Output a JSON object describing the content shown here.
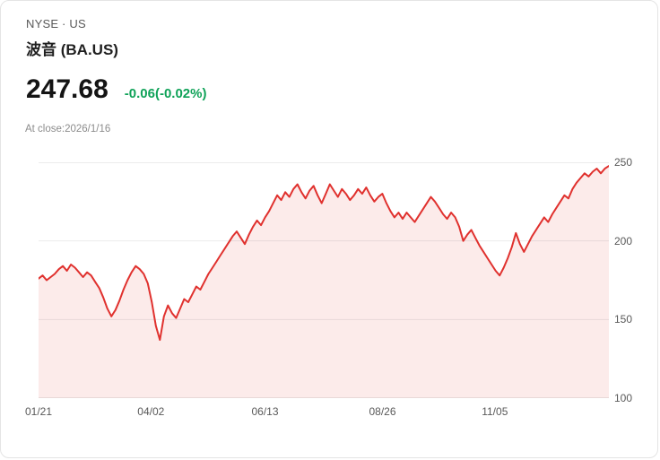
{
  "header": {
    "exchange": "NYSE · US",
    "name": "波音 (BA.US)",
    "price": "247.68",
    "change": "-0.06(-0.02%)",
    "as_of": "At close:2026/1/16"
  },
  "colors": {
    "line": "#e0312e",
    "area": "#fcebea",
    "grid": "rgba(0,0,0,0.08)",
    "change_down_green": "#0fa258",
    "axis_text": "#595959"
  },
  "chart_data": {
    "type": "area",
    "title": "波音 (BA.US) daily close price",
    "xlabel": "",
    "ylabel": "",
    "ylim": [
      100,
      250
    ],
    "grid": true,
    "legend": "none",
    "y_ticks": [
      {
        "label": "250",
        "value": 250
      },
      {
        "label": "200",
        "value": 200
      },
      {
        "label": "150",
        "value": 150
      },
      {
        "label": "100",
        "value": 100
      }
    ],
    "x_ticks": [
      {
        "label": "01/21",
        "pos": 0.0
      },
      {
        "label": "04/02",
        "pos": 0.197
      },
      {
        "label": "06/13",
        "pos": 0.397
      },
      {
        "label": "08/26",
        "pos": 0.603
      },
      {
        "label": "11/05",
        "pos": 0.8
      }
    ],
    "values": [
      176,
      178,
      175,
      177,
      179,
      182,
      184,
      181,
      185,
      183,
      180,
      177,
      180,
      178,
      174,
      170,
      164,
      157,
      152,
      156,
      162,
      169,
      175,
      180,
      184,
      182,
      179,
      173,
      161,
      146,
      137,
      152,
      159,
      154,
      151,
      157,
      163,
      161,
      166,
      171,
      169,
      174,
      179,
      183,
      187,
      191,
      195,
      199,
      203,
      206,
      202,
      198,
      204,
      209,
      213,
      210,
      215,
      219,
      224,
      229,
      226,
      231,
      228,
      233,
      236,
      231,
      227,
      232,
      235,
      229,
      224,
      230,
      236,
      232,
      228,
      233,
      230,
      226,
      229,
      233,
      230,
      234,
      229,
      225,
      228,
      230,
      224,
      219,
      215,
      218,
      214,
      218,
      215,
      212,
      216,
      220,
      224,
      228,
      225,
      221,
      217,
      214,
      218,
      215,
      209,
      200,
      204,
      207,
      202,
      197,
      193,
      189,
      185,
      181,
      178,
      183,
      189,
      196,
      205,
      198,
      193,
      198,
      203,
      207,
      211,
      215,
      212,
      217,
      221,
      225,
      229,
      227,
      233,
      237,
      240,
      243,
      241,
      244,
      246,
      243,
      246,
      247.68
    ]
  }
}
